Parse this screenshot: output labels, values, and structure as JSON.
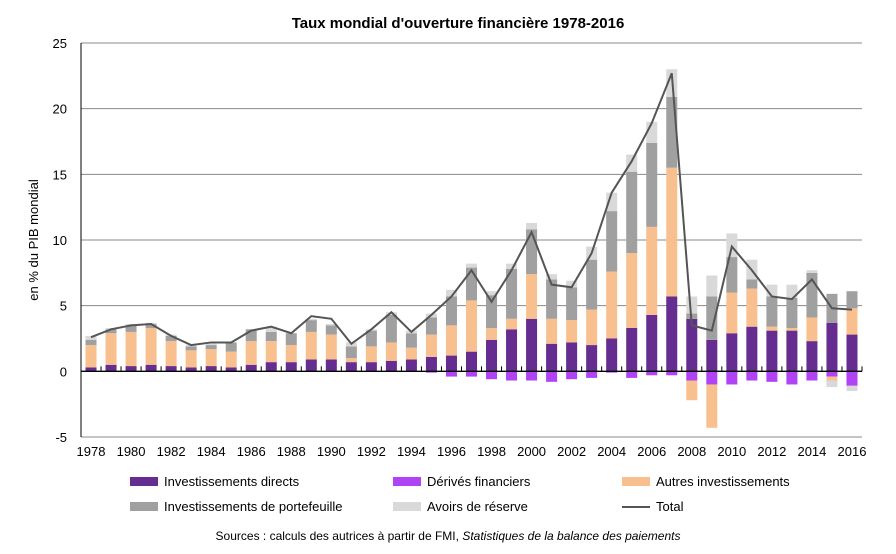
{
  "chart_data": {
    "type": "bar",
    "stacked": true,
    "title": "Taux mondial d'ouverture financière  1978-2016",
    "ylabel": "en % du PIB mondial",
    "xlabel": "",
    "ylim": [
      -5,
      25
    ],
    "yticks": [
      -5,
      0,
      5,
      10,
      15,
      20,
      25
    ],
    "grid": true,
    "legend_position": "bottom",
    "categories": [
      1978,
      1979,
      1980,
      1981,
      1982,
      1983,
      1984,
      1985,
      1986,
      1987,
      1988,
      1989,
      1990,
      1991,
      1992,
      1993,
      1994,
      1995,
      1996,
      1997,
      1998,
      1999,
      2000,
      2001,
      2002,
      2003,
      2004,
      2005,
      2006,
      2007,
      2008,
      2009,
      2010,
      2011,
      2012,
      2013,
      2014,
      2015,
      2016
    ],
    "xtick_labels": [
      "1978",
      "1980",
      "1982",
      "1984",
      "1986",
      "1988",
      "1990",
      "1992",
      "1994",
      "1996",
      "1998",
      "2000",
      "2002",
      "2004",
      "2006",
      "2008",
      "2010",
      "2012",
      "2014",
      "2016"
    ],
    "series": [
      {
        "name": "Investissements directs",
        "color": "#662d91",
        "values": [
          0.3,
          0.5,
          0.4,
          0.5,
          0.4,
          0.3,
          0.4,
          0.3,
          0.5,
          0.7,
          0.7,
          0.9,
          0.9,
          0.7,
          0.7,
          0.8,
          0.9,
          1.1,
          1.2,
          1.5,
          2.4,
          3.2,
          4.0,
          2.1,
          2.2,
          2.0,
          2.5,
          3.3,
          4.3,
          5.7,
          4.0,
          2.4,
          2.9,
          3.4,
          3.1,
          3.1,
          2.3,
          3.7,
          2.8
        ]
      },
      {
        "name": "Dérivés financiers",
        "color": "#b044f5",
        "values": [
          0,
          0,
          0,
          0,
          0,
          0,
          0,
          0,
          0,
          0,
          0,
          0,
          0,
          0,
          0,
          0,
          0,
          -0.1,
          -0.4,
          -0.4,
          -0.6,
          -0.7,
          -0.7,
          -0.8,
          -0.6,
          -0.5,
          -0.1,
          -0.5,
          -0.3,
          -0.3,
          -0.7,
          -1.0,
          -1.0,
          -0.7,
          -0.8,
          -1.0,
          -0.7,
          -0.4,
          -1.1
        ]
      },
      {
        "name": "Autres investissements",
        "color": "#f9c08f",
        "values": [
          1.7,
          2.4,
          2.6,
          2.8,
          1.9,
          1.3,
          1.3,
          1.2,
          1.8,
          1.6,
          1.3,
          2.1,
          1.9,
          0.3,
          1.2,
          1.4,
          0.9,
          1.7,
          2.3,
          3.9,
          0.9,
          0.8,
          3.4,
          1.9,
          1.7,
          2.7,
          5.1,
          5.7,
          6.7,
          9.8,
          -1.5,
          -3.3,
          3.1,
          2.9,
          0.3,
          0.2,
          1.8,
          -0.3,
          2.0
        ]
      },
      {
        "name": "Investissements de portefeuille",
        "color": "#a0a0a0",
        "values": [
          0.4,
          0.3,
          0.5,
          0.3,
          0.4,
          0.3,
          0.3,
          0.7,
          0.9,
          0.7,
          0.9,
          0.9,
          0.7,
          0.9,
          1.2,
          2.1,
          1.1,
          1.3,
          2.2,
          2.5,
          2.5,
          3.8,
          3.4,
          3.0,
          2.5,
          3.8,
          4.6,
          6.2,
          6.4,
          5.4,
          0.4,
          3.3,
          2.7,
          0.7,
          2.3,
          2.3,
          3.4,
          2.2,
          1.3
        ]
      },
      {
        "name": "Avoirs de réserve",
        "color": "#d9d9d9",
        "values": [
          0.3,
          0.1,
          0.1,
          0.1,
          0.1,
          0.1,
          0.1,
          0,
          0,
          0.4,
          0,
          0.1,
          0.1,
          0.3,
          0.1,
          0.2,
          0.2,
          0.3,
          0.5,
          0.3,
          0.3,
          0.4,
          0.5,
          0.4,
          0.5,
          1.0,
          1.4,
          1.3,
          1.6,
          2.1,
          1.3,
          1.6,
          1.8,
          1.5,
          0.9,
          1.0,
          0.2,
          -0.5,
          -0.4
        ]
      }
    ],
    "line": {
      "name": "Total",
      "color": "#555555",
      "values": [
        2.6,
        3.2,
        3.5,
        3.6,
        2.7,
        2.0,
        2.2,
        2.2,
        3.1,
        3.4,
        2.9,
        4.2,
        4.0,
        2.1,
        3.2,
        4.5,
        3.0,
        4.3,
        5.7,
        7.7,
        5.3,
        7.7,
        10.6,
        6.6,
        6.4,
        9.0,
        13.6,
        16.0,
        18.9,
        22.7,
        3.5,
        3.1,
        9.5,
        7.7,
        5.7,
        5.5,
        7.0,
        4.8,
        4.7
      ]
    }
  },
  "source": {
    "prefix": "Sources : calculs des autrices à partir de FMI, ",
    "italic": "Statistiques de la balance des paiements"
  }
}
